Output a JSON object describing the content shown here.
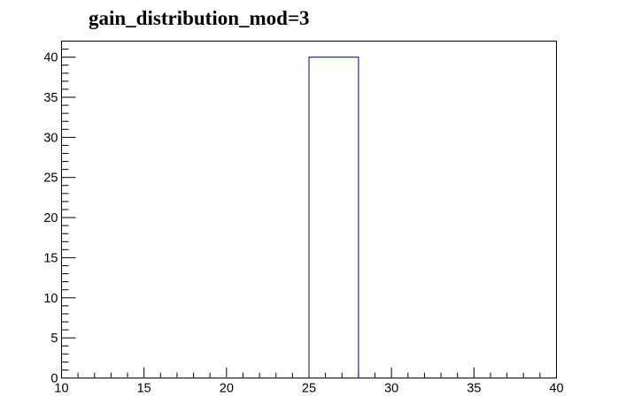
{
  "chart_data": {
    "type": "bar",
    "title": "gain_distribution_mod=3",
    "xlabel": "",
    "ylabel": "",
    "xlim": [
      10,
      40
    ],
    "ylim": [
      0,
      42
    ],
    "x_ticks": [
      10,
      15,
      20,
      25,
      30,
      35,
      40
    ],
    "y_ticks": [
      0,
      5,
      10,
      15,
      20,
      25,
      30,
      35,
      40
    ],
    "bins": [
      {
        "low": 25,
        "high": 28,
        "value": 40
      }
    ],
    "bar_color": "#000099",
    "grid": false,
    "legend": "none"
  }
}
